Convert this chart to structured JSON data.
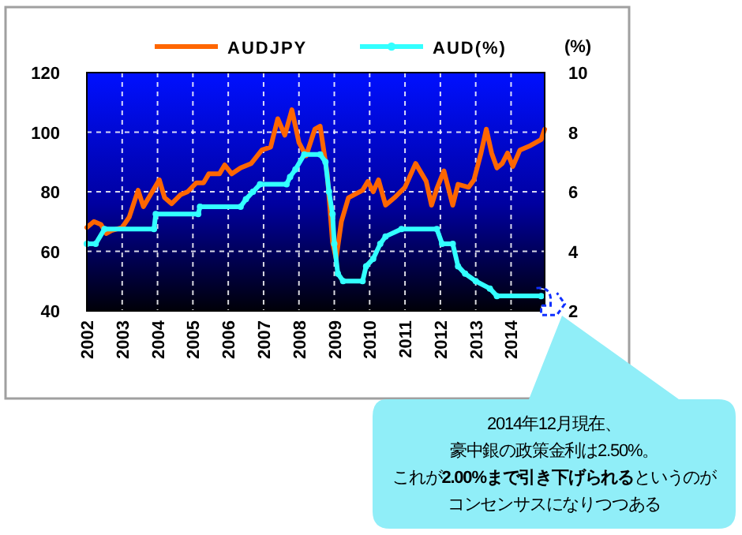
{
  "chart_data": {
    "type": "line",
    "xlim": [
      2002,
      2014.95
    ],
    "xticks": [
      2002,
      2003,
      2004,
      2005,
      2006,
      2007,
      2008,
      2009,
      2010,
      2011,
      2012,
      2013,
      2014
    ],
    "ylim": [
      40,
      120
    ],
    "yticks": [
      40,
      60,
      80,
      100,
      120
    ],
    "y2lim": [
      2,
      10
    ],
    "y2ticks": [
      2,
      4,
      6,
      8,
      10
    ],
    "y2label": "(%)",
    "grid": true,
    "legend": "top",
    "series": [
      {
        "name": "AUDJPY",
        "color": "#ff6600",
        "marker": "none",
        "x": [
          2002.0,
          2002.2,
          2002.4,
          2002.55,
          2002.7,
          2003.0,
          2003.2,
          2003.45,
          2003.6,
          2003.8,
          2004.05,
          2004.2,
          2004.4,
          2004.65,
          2004.85,
          2005.1,
          2005.3,
          2005.45,
          2005.75,
          2005.9,
          2006.1,
          2006.35,
          2006.65,
          2006.95,
          2007.2,
          2007.4,
          2007.6,
          2007.8,
          2008.0,
          2008.2,
          2008.45,
          2008.6,
          2008.8,
          2008.95,
          2009.05,
          2009.2,
          2009.4,
          2009.8,
          2009.95,
          2010.1,
          2010.25,
          2010.45,
          2010.7,
          2011.0,
          2011.3,
          2011.6,
          2011.75,
          2011.9,
          2012.1,
          2012.35,
          2012.5,
          2012.8,
          2012.95,
          2013.15,
          2013.3,
          2013.45,
          2013.6,
          2013.75,
          2013.9,
          2014.05,
          2014.25,
          2014.55,
          2014.85,
          2014.95
        ],
        "values": [
          68,
          70,
          69,
          66,
          67,
          68,
          71.5,
          80.5,
          75,
          79,
          84,
          78,
          76,
          79,
          80,
          83,
          83,
          86,
          86,
          89,
          86,
          88,
          89.5,
          94,
          95,
          104.5,
          99,
          107.5,
          96.5,
          92,
          101,
          102,
          86,
          63,
          57.5,
          70,
          78,
          80.5,
          83.5,
          80,
          84,
          75.5,
          78,
          81.5,
          89.5,
          83.5,
          75.5,
          81,
          87,
          75.5,
          82.5,
          81.5,
          84,
          93,
          101,
          93,
          88,
          89.5,
          93,
          88.5,
          94,
          95.5,
          97.5,
          101
        ]
      },
      {
        "name": "AUD(%)",
        "color": "#33ffff",
        "marker": "circle",
        "axis": "y2",
        "x": [
          2002.0,
          2002.25,
          2002.5,
          2003.9,
          2003.95,
          2005.15,
          2005.2,
          2006.35,
          2006.5,
          2006.7,
          2006.9,
          2007.65,
          2007.75,
          2007.9,
          2008.15,
          2008.6,
          2008.75,
          2008.85,
          2008.95,
          2009.0,
          2009.1,
          2009.25,
          2009.8,
          2009.9,
          2010.1,
          2010.3,
          2010.45,
          2010.9,
          2011.9,
          2012.05,
          2012.35,
          2012.5,
          2012.7,
          2013.0,
          2013.4,
          2013.6,
          2014.85
        ],
        "values": [
          4.25,
          4.25,
          4.75,
          4.75,
          5.25,
          5.25,
          5.5,
          5.5,
          5.75,
          6.0,
          6.25,
          6.25,
          6.5,
          6.75,
          7.25,
          7.25,
          7.0,
          6.0,
          5.25,
          4.25,
          3.25,
          3.0,
          3.0,
          3.5,
          3.75,
          4.25,
          4.5,
          4.75,
          4.75,
          4.25,
          4.25,
          3.5,
          3.25,
          3.0,
          2.75,
          2.5,
          2.5
        ]
      }
    ],
    "annotations": [
      "2014年12月現在、",
      "豪中銀の政策金利は2.50%。",
      "これが**2.00%まで引き下げられる**というのが",
      "コンセンサスになりつつある"
    ]
  }
}
